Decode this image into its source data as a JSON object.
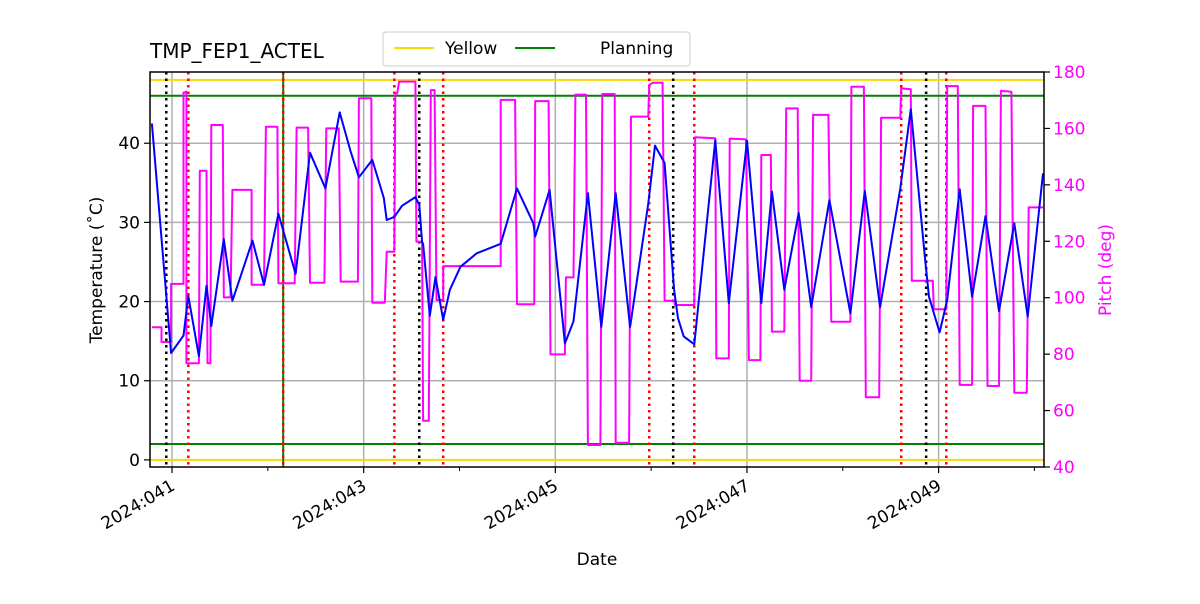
{
  "chart_data": {
    "type": "line",
    "title": "TMP_FEP1_ACTEL",
    "xlabel": "Date",
    "ylabel": "Temperature ($^\\circ$C)",
    "ylabel_display": "Temperature (˚C)",
    "y2label": "Pitch (deg)",
    "xlim": [
      40.77,
      50.1
    ],
    "ylim": [
      -0.9,
      49.0
    ],
    "y2lim": [
      40,
      180
    ],
    "grid": true,
    "x_ticks": [
      {
        "value": 41,
        "label": "2024:041"
      },
      {
        "value": 43,
        "label": "2024:043"
      },
      {
        "value": 45,
        "label": "2024:045"
      },
      {
        "value": 47,
        "label": "2024:047"
      },
      {
        "value": 49,
        "label": "2024:049"
      }
    ],
    "x_minor_ticks": [
      42,
      44,
      46,
      48,
      50
    ],
    "y_ticks": [
      0,
      10,
      20,
      30,
      40
    ],
    "y2_ticks": [
      40,
      60,
      80,
      100,
      120,
      140,
      160,
      180
    ],
    "legend": {
      "placement": "top-center",
      "entries": [
        {
          "label": "Yellow",
          "color": "#ffd700"
        },
        {
          "label": "Planning",
          "color": "#008000"
        }
      ]
    },
    "limit_lines": [
      {
        "name": "Yellow",
        "values": [
          48,
          0
        ],
        "color": "#ffd700"
      },
      {
        "name": "Planning",
        "values": [
          46,
          2
        ],
        "color": "#008000"
      }
    ],
    "vertical_lines": {
      "black_dotted": [
        40.94,
        43.58,
        46.23,
        48.87
      ],
      "red_dotted": [
        41.17,
        42.16,
        43.32,
        43.83,
        45.98,
        46.45,
        48.61,
        49.08
      ],
      "green_solid": [
        42.16
      ]
    },
    "series": [
      {
        "axis": "left",
        "color": "#0000ff",
        "points": [
          [
            40.79,
            42.5
          ],
          [
            40.99,
            13.5
          ],
          [
            41.12,
            15.7
          ],
          [
            41.17,
            20.7
          ],
          [
            41.28,
            13.1
          ],
          [
            41.36,
            22.0
          ],
          [
            41.41,
            16.9
          ],
          [
            41.54,
            27.9
          ],
          [
            41.63,
            20.1
          ],
          [
            41.84,
            27.7
          ],
          [
            41.96,
            22.1
          ],
          [
            42.11,
            31.1
          ],
          [
            42.29,
            23.5
          ],
          [
            42.44,
            38.8
          ],
          [
            42.6,
            34.3
          ],
          [
            42.75,
            43.9
          ],
          [
            42.86,
            39.1
          ],
          [
            42.95,
            35.7
          ],
          [
            43.09,
            37.9
          ],
          [
            43.21,
            33.1
          ],
          [
            43.24,
            30.3
          ],
          [
            43.32,
            30.7
          ],
          [
            43.4,
            32.1
          ],
          [
            43.54,
            33.2
          ],
          [
            43.58,
            32.2
          ],
          [
            43.61,
            27.5
          ],
          [
            43.62,
            27.3
          ],
          [
            43.69,
            18.2
          ],
          [
            43.75,
            23.1
          ],
          [
            43.83,
            17.7
          ],
          [
            43.9,
            21.5
          ],
          [
            44.01,
            24.4
          ],
          [
            44.18,
            26.1
          ],
          [
            44.43,
            27.3
          ],
          [
            44.6,
            34.3
          ],
          [
            44.77,
            29.9
          ],
          [
            44.79,
            28.2
          ],
          [
            44.94,
            34.1
          ],
          [
            45.1,
            14.7
          ],
          [
            45.19,
            17.5
          ],
          [
            45.34,
            33.7
          ],
          [
            45.48,
            16.8
          ],
          [
            45.63,
            33.7
          ],
          [
            45.78,
            16.8
          ],
          [
            45.97,
            32.4
          ],
          [
            46.04,
            39.7
          ],
          [
            46.14,
            37.5
          ],
          [
            46.24,
            21.5
          ],
          [
            46.28,
            17.9
          ],
          [
            46.34,
            15.6
          ],
          [
            46.45,
            14.6
          ],
          [
            46.67,
            40.4
          ],
          [
            46.81,
            19.8
          ],
          [
            47.0,
            40.3
          ],
          [
            47.15,
            19.8
          ],
          [
            47.26,
            33.9
          ],
          [
            47.39,
            21.5
          ],
          [
            47.54,
            31.2
          ],
          [
            47.67,
            19.3
          ],
          [
            47.86,
            32.8
          ],
          [
            48.08,
            18.5
          ],
          [
            48.23,
            34.0
          ],
          [
            48.39,
            19.3
          ],
          [
            48.6,
            34.3
          ],
          [
            48.71,
            44.3
          ],
          [
            48.86,
            25.2
          ],
          [
            48.9,
            20.6
          ],
          [
            49.01,
            16.1
          ],
          [
            49.09,
            20.2
          ],
          [
            49.22,
            34.2
          ],
          [
            49.35,
            20.6
          ],
          [
            49.49,
            30.8
          ],
          [
            49.63,
            18.8
          ],
          [
            49.79,
            29.9
          ],
          [
            49.93,
            18.1
          ],
          [
            50.09,
            36.2
          ]
        ]
      },
      {
        "axis": "right",
        "color": "#ff00ff",
        "points": [
          [
            40.79,
            89.5
          ],
          [
            40.89,
            89.5
          ],
          [
            40.89,
            84.3
          ],
          [
            40.99,
            84.3
          ],
          [
            40.99,
            104.9
          ],
          [
            41.12,
            104.9
          ],
          [
            41.12,
            172.7
          ],
          [
            41.15,
            173
          ],
          [
            41.15,
            76.8
          ],
          [
            41.28,
            76.8
          ],
          [
            41.29,
            145
          ],
          [
            41.36,
            145
          ],
          [
            41.37,
            76.8
          ],
          [
            41.4,
            76.8
          ],
          [
            41.41,
            161.2
          ],
          [
            41.53,
            161.2
          ],
          [
            41.54,
            100.1
          ],
          [
            41.61,
            100.1
          ],
          [
            41.63,
            138.2
          ],
          [
            41.83,
            138.2
          ],
          [
            41.83,
            104.6
          ],
          [
            41.96,
            104.6
          ],
          [
            41.98,
            160.6
          ],
          [
            42.1,
            160.6
          ],
          [
            42.11,
            105.1
          ],
          [
            42.28,
            105.1
          ],
          [
            42.3,
            160.3
          ],
          [
            42.42,
            160.3
          ],
          [
            42.44,
            105.3
          ],
          [
            42.59,
            105.3
          ],
          [
            42.61,
            160
          ],
          [
            42.74,
            160
          ],
          [
            42.76,
            105.7
          ],
          [
            42.94,
            105.7
          ],
          [
            42.95,
            170.7
          ],
          [
            43.08,
            170.7
          ],
          [
            43.09,
            98.2
          ],
          [
            43.22,
            98.2
          ],
          [
            43.24,
            116.3
          ],
          [
            43.32,
            116.3
          ],
          [
            43.33,
            172.4
          ],
          [
            43.35,
            172.4
          ],
          [
            43.37,
            176.6
          ],
          [
            43.54,
            176.6
          ],
          [
            43.55,
            119.9
          ],
          [
            43.61,
            119.9
          ],
          [
            43.62,
            56.4
          ],
          [
            43.68,
            56.4
          ],
          [
            43.7,
            173.6
          ],
          [
            43.74,
            173.6
          ],
          [
            43.76,
            99.2
          ],
          [
            43.83,
            99.2
          ],
          [
            43.83,
            111.2
          ],
          [
            44.43,
            111.2
          ],
          [
            44.43,
            170.1
          ],
          [
            44.58,
            170.1
          ],
          [
            44.6,
            97.7
          ],
          [
            44.78,
            97.7
          ],
          [
            44.79,
            169.7
          ],
          [
            44.93,
            169.7
          ],
          [
            44.95,
            79.9
          ],
          [
            45.1,
            79.9
          ],
          [
            45.11,
            107.2
          ],
          [
            45.19,
            107.2
          ],
          [
            45.21,
            172
          ],
          [
            45.32,
            172
          ],
          [
            45.34,
            47.8
          ],
          [
            45.47,
            47.8
          ],
          [
            45.49,
            172.2
          ],
          [
            45.62,
            172.2
          ],
          [
            45.63,
            48.6
          ],
          [
            45.77,
            48.6
          ],
          [
            45.79,
            164.2
          ],
          [
            45.97,
            164.2
          ],
          [
            45.98,
            175.4
          ],
          [
            46.02,
            176.2
          ],
          [
            46.12,
            176.2
          ],
          [
            46.14,
            98.9
          ],
          [
            46.24,
            98.9
          ],
          [
            46.25,
            97.4
          ],
          [
            46.45,
            97.4
          ],
          [
            46.46,
            156.9
          ],
          [
            46.67,
            156.5
          ],
          [
            46.68,
            78.5
          ],
          [
            46.81,
            78.5
          ],
          [
            46.82,
            156.4
          ],
          [
            46.99,
            156.1
          ],
          [
            47.02,
            77.9
          ],
          [
            47.14,
            77.9
          ],
          [
            47.15,
            150.6
          ],
          [
            47.25,
            150.6
          ],
          [
            47.26,
            88
          ],
          [
            47.39,
            88
          ],
          [
            47.41,
            167.1
          ],
          [
            47.53,
            167.1
          ],
          [
            47.55,
            70.6
          ],
          [
            47.67,
            70.6
          ],
          [
            47.69,
            164.8
          ],
          [
            47.85,
            164.8
          ],
          [
            47.88,
            91.5
          ],
          [
            48.08,
            91.5
          ],
          [
            48.09,
            174.8
          ],
          [
            48.22,
            174.8
          ],
          [
            48.24,
            64.7
          ],
          [
            48.38,
            64.7
          ],
          [
            48.4,
            163.8
          ],
          [
            48.6,
            163.8
          ],
          [
            48.61,
            174.2
          ],
          [
            48.71,
            173.9
          ],
          [
            48.72,
            106
          ],
          [
            48.94,
            106
          ],
          [
            48.95,
            95.9
          ],
          [
            49.08,
            95.9
          ],
          [
            49.09,
            175
          ],
          [
            49.2,
            175
          ],
          [
            49.22,
            69.1
          ],
          [
            49.35,
            69.1
          ],
          [
            49.36,
            168
          ],
          [
            49.49,
            168
          ],
          [
            49.51,
            68.7
          ],
          [
            49.63,
            68.7
          ],
          [
            49.65,
            173.3
          ],
          [
            49.76,
            173
          ],
          [
            49.79,
            66.3
          ],
          [
            49.92,
            66.3
          ],
          [
            49.94,
            132
          ],
          [
            50.09,
            132
          ]
        ]
      }
    ]
  }
}
